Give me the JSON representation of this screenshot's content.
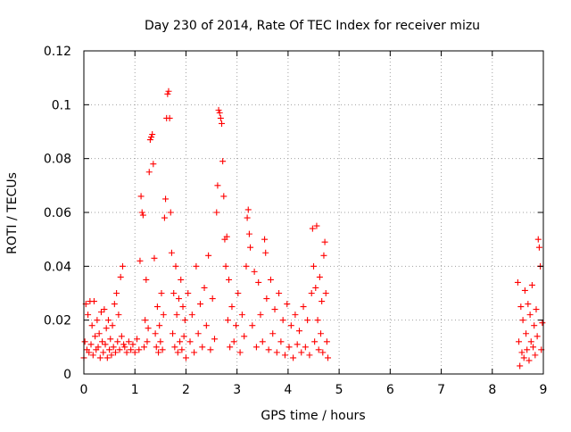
{
  "chart_data": {
    "type": "scatter",
    "title": "Day 230 of 2014, Rate Of TEC Index for receiver mizu",
    "xlabel": "GPS time / hours",
    "ylabel": "ROTI / TECUs",
    "xlim": [
      0,
      9
    ],
    "ylim": [
      0,
      0.12
    ],
    "xticks": [
      0,
      1,
      2,
      3,
      4,
      5,
      6,
      7,
      8,
      9
    ],
    "xtick_labels": [
      "0",
      "1",
      "2",
      "3",
      "4",
      "5",
      "6",
      "7",
      "8",
      "9"
    ],
    "yticks": [
      0,
      0.02,
      0.04,
      0.06,
      0.08,
      0.1,
      0.12
    ],
    "ytick_labels": [
      "0",
      "0.02",
      "0.04",
      "0.06",
      "0.08",
      "0.1",
      "0.12"
    ],
    "grid": true,
    "marker": "+",
    "color": "#ff0000",
    "series": [
      {
        "name": "ROTI",
        "points": [
          [
            0.0,
            0.006
          ],
          [
            0.02,
            0.012
          ],
          [
            0.04,
            0.026
          ],
          [
            0.06,
            0.009
          ],
          [
            0.08,
            0.022
          ],
          [
            0.1,
            0.008
          ],
          [
            0.12,
            0.027
          ],
          [
            0.14,
            0.011
          ],
          [
            0.16,
            0.018
          ],
          [
            0.18,
            0.007
          ],
          [
            0.2,
            0.027
          ],
          [
            0.22,
            0.014
          ],
          [
            0.24,
            0.009
          ],
          [
            0.26,
            0.02
          ],
          [
            0.28,
            0.01
          ],
          [
            0.3,
            0.015
          ],
          [
            0.32,
            0.006
          ],
          [
            0.34,
            0.023
          ],
          [
            0.36,
            0.012
          ],
          [
            0.38,
            0.008
          ],
          [
            0.4,
            0.024
          ],
          [
            0.42,
            0.011
          ],
          [
            0.44,
            0.017
          ],
          [
            0.46,
            0.006
          ],
          [
            0.48,
            0.02
          ],
          [
            0.5,
            0.009
          ],
          [
            0.52,
            0.013
          ],
          [
            0.54,
            0.007
          ],
          [
            0.56,
            0.018
          ],
          [
            0.58,
            0.01
          ],
          [
            0.6,
            0.026
          ],
          [
            0.62,
            0.008
          ],
          [
            0.64,
            0.03
          ],
          [
            0.66,
            0.012
          ],
          [
            0.68,
            0.022
          ],
          [
            0.7,
            0.009
          ],
          [
            0.72,
            0.036
          ],
          [
            0.74,
            0.014
          ],
          [
            0.76,
            0.04
          ],
          [
            0.78,
            0.011
          ],
          [
            0.8,
            0.01
          ],
          [
            0.84,
            0.008
          ],
          [
            0.88,
            0.012
          ],
          [
            0.92,
            0.009
          ],
          [
            0.96,
            0.011
          ],
          [
            1.0,
            0.008
          ],
          [
            1.04,
            0.013
          ],
          [
            1.08,
            0.009
          ],
          [
            1.1,
            0.042
          ],
          [
            1.12,
            0.066
          ],
          [
            1.14,
            0.06
          ],
          [
            1.16,
            0.059
          ],
          [
            1.18,
            0.01
          ],
          [
            1.2,
            0.02
          ],
          [
            1.22,
            0.035
          ],
          [
            1.24,
            0.012
          ],
          [
            1.26,
            0.017
          ],
          [
            1.28,
            0.075
          ],
          [
            1.3,
            0.087
          ],
          [
            1.32,
            0.088
          ],
          [
            1.34,
            0.089
          ],
          [
            1.36,
            0.078
          ],
          [
            1.38,
            0.043
          ],
          [
            1.4,
            0.015
          ],
          [
            1.42,
            0.01
          ],
          [
            1.44,
            0.025
          ],
          [
            1.46,
            0.008
          ],
          [
            1.48,
            0.018
          ],
          [
            1.5,
            0.012
          ],
          [
            1.52,
            0.03
          ],
          [
            1.54,
            0.009
          ],
          [
            1.56,
            0.022
          ],
          [
            1.58,
            0.058
          ],
          [
            1.6,
            0.065
          ],
          [
            1.62,
            0.095
          ],
          [
            1.64,
            0.104
          ],
          [
            1.66,
            0.105
          ],
          [
            1.68,
            0.095
          ],
          [
            1.7,
            0.06
          ],
          [
            1.72,
            0.045
          ],
          [
            1.74,
            0.015
          ],
          [
            1.76,
            0.03
          ],
          [
            1.78,
            0.01
          ],
          [
            1.8,
            0.04
          ],
          [
            1.82,
            0.022
          ],
          [
            1.84,
            0.008
          ],
          [
            1.86,
            0.028
          ],
          [
            1.88,
            0.012
          ],
          [
            1.9,
            0.035
          ],
          [
            1.92,
            0.009
          ],
          [
            1.94,
            0.025
          ],
          [
            1.96,
            0.014
          ],
          [
            1.98,
            0.02
          ],
          [
            2.0,
            0.006
          ],
          [
            2.04,
            0.03
          ],
          [
            2.08,
            0.012
          ],
          [
            2.12,
            0.022
          ],
          [
            2.16,
            0.008
          ],
          [
            2.2,
            0.04
          ],
          [
            2.24,
            0.015
          ],
          [
            2.28,
            0.026
          ],
          [
            2.32,
            0.01
          ],
          [
            2.36,
            0.032
          ],
          [
            2.4,
            0.018
          ],
          [
            2.44,
            0.044
          ],
          [
            2.48,
            0.009
          ],
          [
            2.52,
            0.028
          ],
          [
            2.56,
            0.013
          ],
          [
            2.6,
            0.06
          ],
          [
            2.62,
            0.07
          ],
          [
            2.64,
            0.098
          ],
          [
            2.66,
            0.097
          ],
          [
            2.68,
            0.095
          ],
          [
            2.7,
            0.093
          ],
          [
            2.72,
            0.079
          ],
          [
            2.74,
            0.066
          ],
          [
            2.76,
            0.05
          ],
          [
            2.78,
            0.04
          ],
          [
            2.8,
            0.051
          ],
          [
            2.82,
            0.02
          ],
          [
            2.84,
            0.035
          ],
          [
            2.86,
            0.01
          ],
          [
            2.9,
            0.025
          ],
          [
            2.94,
            0.012
          ],
          [
            2.98,
            0.018
          ],
          [
            3.02,
            0.03
          ],
          [
            3.06,
            0.008
          ],
          [
            3.1,
            0.022
          ],
          [
            3.14,
            0.014
          ],
          [
            3.18,
            0.04
          ],
          [
            3.2,
            0.058
          ],
          [
            3.22,
            0.061
          ],
          [
            3.24,
            0.052
          ],
          [
            3.26,
            0.047
          ],
          [
            3.3,
            0.018
          ],
          [
            3.34,
            0.038
          ],
          [
            3.38,
            0.01
          ],
          [
            3.42,
            0.034
          ],
          [
            3.46,
            0.022
          ],
          [
            3.5,
            0.012
          ],
          [
            3.54,
            0.05
          ],
          [
            3.56,
            0.045
          ],
          [
            3.58,
            0.028
          ],
          [
            3.62,
            0.009
          ],
          [
            3.66,
            0.035
          ],
          [
            3.7,
            0.015
          ],
          [
            3.74,
            0.024
          ],
          [
            3.78,
            0.008
          ],
          [
            3.82,
            0.03
          ],
          [
            3.86,
            0.012
          ],
          [
            3.9,
            0.02
          ],
          [
            3.94,
            0.007
          ],
          [
            3.98,
            0.026
          ],
          [
            4.02,
            0.01
          ],
          [
            4.06,
            0.018
          ],
          [
            4.1,
            0.006
          ],
          [
            4.14,
            0.022
          ],
          [
            4.18,
            0.011
          ],
          [
            4.22,
            0.016
          ],
          [
            4.26,
            0.008
          ],
          [
            4.3,
            0.025
          ],
          [
            4.34,
            0.01
          ],
          [
            4.38,
            0.02
          ],
          [
            4.42,
            0.007
          ],
          [
            4.46,
            0.03
          ],
          [
            4.48,
            0.054
          ],
          [
            4.5,
            0.04
          ],
          [
            4.52,
            0.012
          ],
          [
            4.54,
            0.032
          ],
          [
            4.56,
            0.055
          ],
          [
            4.58,
            0.02
          ],
          [
            4.6,
            0.009
          ],
          [
            4.62,
            0.036
          ],
          [
            4.64,
            0.015
          ],
          [
            4.66,
            0.027
          ],
          [
            4.68,
            0.008
          ],
          [
            4.7,
            0.044
          ],
          [
            4.72,
            0.049
          ],
          [
            4.74,
            0.03
          ],
          [
            4.76,
            0.012
          ],
          [
            4.78,
            0.006
          ],
          [
            8.5,
            0.034
          ],
          [
            8.52,
            0.012
          ],
          [
            8.54,
            0.003
          ],
          [
            8.56,
            0.025
          ],
          [
            8.58,
            0.008
          ],
          [
            8.6,
            0.02
          ],
          [
            8.62,
            0.006
          ],
          [
            8.64,
            0.031
          ],
          [
            8.66,
            0.015
          ],
          [
            8.68,
            0.009
          ],
          [
            8.7,
            0.026
          ],
          [
            8.72,
            0.005
          ],
          [
            8.74,
            0.022
          ],
          [
            8.76,
            0.012
          ],
          [
            8.78,
            0.033
          ],
          [
            8.8,
            0.01
          ],
          [
            8.82,
            0.018
          ],
          [
            8.84,
            0.007
          ],
          [
            8.86,
            0.024
          ],
          [
            8.88,
            0.014
          ],
          [
            8.9,
            0.05
          ],
          [
            8.92,
            0.047
          ],
          [
            8.94,
            0.04
          ],
          [
            8.96,
            0.009
          ],
          [
            8.98,
            0.019
          ]
        ]
      }
    ]
  }
}
